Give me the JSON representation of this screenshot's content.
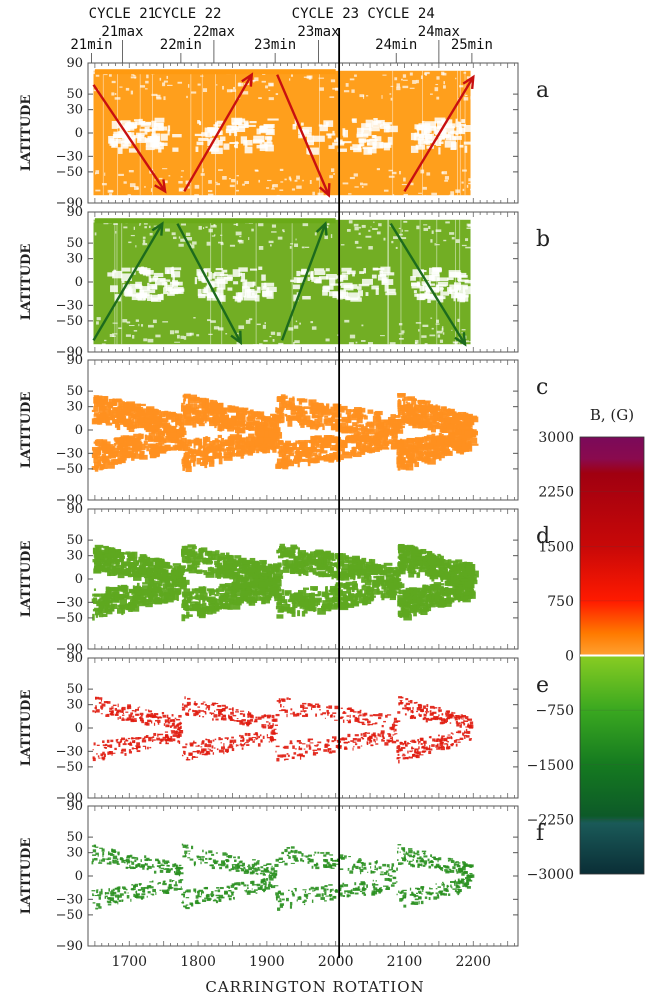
{
  "chart_data": {
    "type": "heatmap",
    "x_label": "CARRINGTON ROTATION",
    "y_label": "LATITUDE",
    "x_ticks": [
      1700,
      1800,
      1900,
      2000,
      2100,
      2200
    ],
    "x_range": [
      1640,
      2265
    ],
    "y_ticks": [
      90,
      50,
      30,
      0,
      -30,
      -50,
      -90
    ],
    "y_tick_labels": [
      "90",
      "50",
      "30",
      "0",
      "−30",
      "−50",
      "−90"
    ],
    "y_range": [
      -90,
      90
    ],
    "vertical_marker_rotation": 2005,
    "cycles": [
      {
        "label": "CYCLE 21",
        "x": 1690
      },
      {
        "label": "CYCLE 22",
        "x": 1785
      },
      {
        "label": "CYCLE 23",
        "x": 1985
      },
      {
        "label": "CYCLE 24",
        "x": 2095
      }
    ],
    "phases": [
      {
        "label": "21min",
        "x": 1645
      },
      {
        "label": "21max",
        "x": 1690
      },
      {
        "label": "22min",
        "x": 1775
      },
      {
        "label": "22max",
        "x": 1823
      },
      {
        "label": "23min",
        "x": 1912
      },
      {
        "label": "23max",
        "x": 1975
      },
      {
        "label": "24min",
        "x": 2088
      },
      {
        "label": "24max",
        "x": 2150
      },
      {
        "label": "25min",
        "x": 2198
      }
    ],
    "panels": [
      {
        "letter": "a",
        "polarity": "positive",
        "color": "#ff9a10",
        "style": "dense",
        "min_abs_field_g": 0,
        "arrows": [
          {
            "from": [
              1648,
              62
            ],
            "to": [
              1752,
              -75
            ],
            "color": "#c81010"
          },
          {
            "from": [
              1780,
              -75
            ],
            "to": [
              1878,
              75
            ],
            "color": "#c81010"
          },
          {
            "from": [
              1915,
              75
            ],
            "to": [
              1990,
              -80
            ],
            "color": "#c81010"
          },
          {
            "from": [
              2100,
              -75
            ],
            "to": [
              2200,
              72
            ],
            "color": "#c81010"
          }
        ]
      },
      {
        "letter": "b",
        "polarity": "negative",
        "color": "#6aaa18",
        "style": "dense",
        "min_abs_field_g": 0,
        "arrows": [
          {
            "from": [
              1648,
              -75
            ],
            "to": [
              1748,
              75
            ],
            "color": "#1d6b1d"
          },
          {
            "from": [
              1770,
              75
            ],
            "to": [
              1862,
              -78
            ],
            "color": "#1d6b1d"
          },
          {
            "from": [
              1922,
              -75
            ],
            "to": [
              1985,
              75
            ],
            "color": "#1d6b1d"
          },
          {
            "from": [
              2080,
              75
            ],
            "to": [
              2188,
              -80
            ],
            "color": "#1d6b1d"
          }
        ]
      },
      {
        "letter": "c",
        "polarity": "positive",
        "color": "#ff9020",
        "style": "wings",
        "min_abs_field_g": 100,
        "arrows": []
      },
      {
        "letter": "d",
        "polarity": "negative",
        "color": "#5ea820",
        "style": "wings",
        "min_abs_field_g": 100,
        "arrows": []
      },
      {
        "letter": "e",
        "polarity": "positive",
        "color": "#e01c10",
        "style": "sparse",
        "min_abs_field_g": 1000,
        "arrows": []
      },
      {
        "letter": "f",
        "polarity": "negative",
        "color": "#2a9020",
        "style": "sparse",
        "min_abs_field_g": 1000,
        "arrows": []
      }
    ],
    "colorbar": {
      "title": "B, (G)",
      "range": [
        -3000,
        3000
      ],
      "ticks": [
        3000,
        2250,
        1500,
        750,
        0,
        -750,
        -1500,
        -2250,
        -3000
      ],
      "tick_labels": [
        "3000",
        "2250",
        "1500",
        "750",
        "0",
        "−750",
        "−1500",
        "−2250",
        "−3000"
      ],
      "stops": [
        {
          "value": 3000,
          "color": "#7a0a5a"
        },
        {
          "value": 2700,
          "color": "#8a0a4e"
        },
        {
          "value": 2500,
          "color": "#a00010"
        },
        {
          "value": 1500,
          "color": "#c80808"
        },
        {
          "value": 750,
          "color": "#ff1a00"
        },
        {
          "value": 300,
          "color": "#ff7a00"
        },
        {
          "value": 10,
          "color": "#ffa030"
        },
        {
          "value": 0,
          "color": "#ffffff"
        },
        {
          "value": -10,
          "color": "#88cc22"
        },
        {
          "value": -750,
          "color": "#3aa820"
        },
        {
          "value": -1500,
          "color": "#157a20"
        },
        {
          "value": -2200,
          "color": "#0d5a28"
        },
        {
          "value": -2300,
          "color": "#1a5a58"
        },
        {
          "value": -3000,
          "color": "#0a2e36"
        }
      ]
    }
  }
}
